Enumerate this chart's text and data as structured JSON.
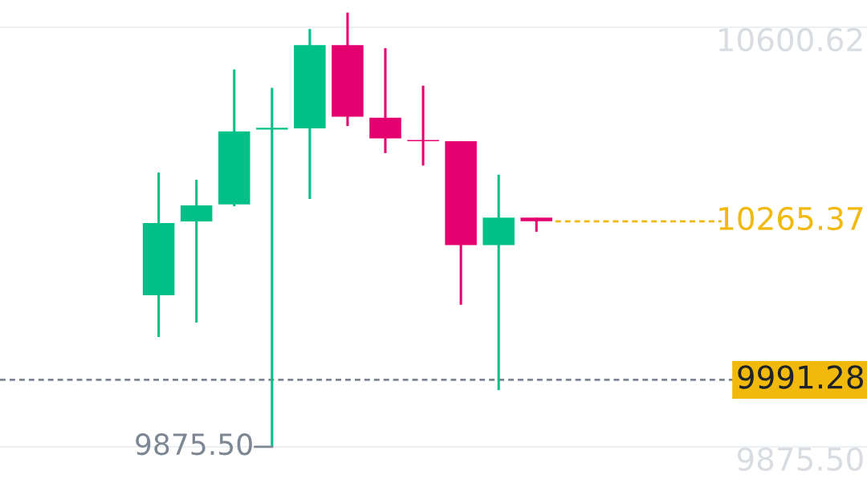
{
  "chart_data": {
    "type": "candlestick",
    "categories": [
      null,
      null,
      null,
      null,
      null,
      null,
      null,
      null,
      null,
      null,
      null,
      null,
      null,
      null
    ],
    "ohlc": [
      null,
      null,
      null,
      [
        10137.5,
        10349.6,
        10065.4,
        10262.3
      ],
      [
        10265.1,
        10337.2,
        10090.4,
        10292.8
      ],
      [
        10294.6,
        10527.9,
        10291.4,
        10420.9
      ],
      [
        10424.0,
        10496.2,
        9875.5,
        10427.0
      ],
      [
        10425.9,
        10597.8,
        10303.9,
        10569.8
      ],
      [
        10569.8,
        10626.3,
        10430.1,
        10446.3
      ],
      [
        10444.6,
        10564.6,
        10383.3,
        10408.6
      ],
      [
        10406.0,
        10499.9,
        10361.8,
        10404.0
      ],
      [
        10404.0,
        10404.0,
        10121.1,
        10224.3
      ],
      [
        10224.3,
        10345.8,
        9973.4,
        10271.6
      ],
      [
        10271.6,
        10271.6,
        10247.3,
        10265.37
      ]
    ],
    "colors": [
      null,
      null,
      null,
      "#00c087",
      "#00c087",
      "#00c087",
      "#00c087",
      "#00c087",
      "#e5006f",
      "#e5006f",
      "#e5006f",
      "#e5006f",
      "#00c087",
      "#e5006f"
    ],
    "ylim": [
      9806,
      10648
    ],
    "yticks": [
      {
        "value": 10600.62,
        "label": "10600.62"
      },
      {
        "value": 9875.5,
        "label": "9875.50"
      }
    ],
    "grid": "y",
    "ref_lines": [
      {
        "axis": "y",
        "value": 10265.37,
        "label": "10265.37",
        "color": "#f0b90b",
        "line_style": "dashed"
      },
      {
        "axis": "y",
        "value": 9991.28,
        "label": "9991.28",
        "color": "#7d8794",
        "line_style": "dashed"
      }
    ],
    "annotations": [
      "9875.50"
    ]
  }
}
